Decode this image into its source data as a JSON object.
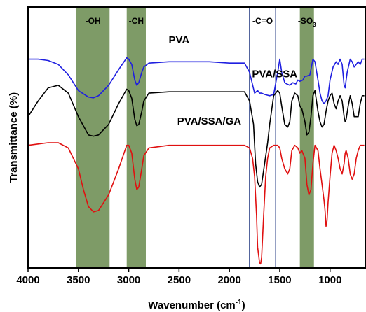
{
  "chart_data": {
    "type": "line",
    "xlabel": "Wavenumber (cm",
    "xlabel_sup": "-1",
    "xlabel_end": ")",
    "ylabel": "Transmittance (%)",
    "xlim": [
      4000,
      650
    ],
    "x_reversed": true,
    "x_ticks": [
      "4000",
      "3500",
      "3000",
      "2500",
      "2000",
      "1500",
      "1000"
    ],
    "x_tick_values": [
      4000,
      3500,
      3000,
      2500,
      2000,
      1500,
      1000
    ],
    "ylim": [
      0,
      100
    ],
    "y_ticks_shown": false,
    "grid": false,
    "bands": [
      {
        "label": "-OH",
        "range": [
          3520,
          3190
        ],
        "style": "filled"
      },
      {
        "label": "-CH",
        "range": [
          3020,
          2830
        ],
        "style": "filled"
      },
      {
        "label": "-C=O",
        "range": [
          1800,
          1540
        ],
        "style": "outlined"
      },
      {
        "label": "-SO",
        "sub": "3",
        "range": [
          1300,
          1160
        ],
        "style": "filled"
      }
    ],
    "band_fill": "#5a7f3c",
    "band_outline": "#3a4f8f",
    "series": [
      {
        "name": "PVA",
        "color": "#1f1fe0",
        "label_x": 2500,
        "label_y": 86,
        "x": [
          4000,
          3900,
          3800,
          3700,
          3600,
          3500,
          3400,
          3350,
          3300,
          3200,
          3100,
          3020,
          3000,
          2970,
          2940,
          2920,
          2900,
          2870,
          2850,
          2800,
          2600,
          2400,
          2200,
          2000,
          1850,
          1800,
          1750,
          1720,
          1700,
          1680,
          1650,
          1600,
          1560,
          1520,
          1500,
          1480,
          1450,
          1430,
          1400,
          1370,
          1340,
          1320,
          1300,
          1270,
          1250,
          1230,
          1200,
          1170,
          1150,
          1120,
          1100,
          1080,
          1060,
          1040,
          1020,
          1000,
          970,
          940,
          920,
          900,
          880,
          860,
          850,
          840,
          830,
          800,
          780,
          760,
          720,
          700,
          680,
          660
        ],
        "y": [
          80,
          80,
          79.5,
          78,
          74,
          68,
          65.5,
          65.2,
          66,
          70,
          76,
          80.5,
          80,
          78,
          72,
          70,
          71,
          75,
          77,
          78.5,
          79,
          79,
          79,
          78.5,
          78.5,
          75,
          67,
          68,
          67,
          67,
          66.5,
          66,
          66.5,
          75,
          80,
          75,
          71,
          70.5,
          70,
          71,
          70.5,
          72,
          71.5,
          72,
          73.5,
          73.5,
          74,
          80,
          79,
          72,
          67,
          64,
          63,
          64,
          66,
          72,
          77,
          79,
          78,
          80,
          78,
          70,
          69,
          72,
          75,
          80,
          79,
          77,
          79,
          78,
          80,
          80
        ]
      },
      {
        "name": "PVA/SSA",
        "color": "#000000",
        "label_x": 1550,
        "label_y": 73,
        "x": [
          4000,
          3900,
          3800,
          3700,
          3600,
          3500,
          3400,
          3350,
          3300,
          3200,
          3100,
          3020,
          3000,
          2970,
          2940,
          2920,
          2900,
          2870,
          2850,
          2800,
          2600,
          2400,
          2200,
          2000,
          1850,
          1800,
          1760,
          1740,
          1720,
          1700,
          1680,
          1650,
          1620,
          1600,
          1560,
          1520,
          1500,
          1480,
          1450,
          1420,
          1400,
          1380,
          1350,
          1320,
          1300,
          1280,
          1250,
          1230,
          1210,
          1190,
          1170,
          1150,
          1120,
          1100,
          1080,
          1060,
          1040,
          1020,
          1000,
          980,
          960,
          940,
          920,
          900,
          880,
          860,
          850,
          840,
          820,
          800,
          780,
          760,
          720,
          700,
          680,
          660
        ],
        "y": [
          58,
          64,
          69,
          70,
          67,
          58,
          51,
          50.5,
          51,
          55,
          63,
          68.5,
          68,
          65,
          57,
          54.5,
          55,
          60,
          64,
          67,
          67.5,
          67.5,
          67.5,
          67.5,
          67.5,
          64,
          55,
          40,
          33,
          31,
          32,
          40,
          48,
          55,
          66,
          68,
          67,
          62,
          55,
          54,
          56,
          64,
          67,
          66,
          62,
          61,
          56,
          51,
          52,
          58,
          66,
          68,
          60,
          56,
          54,
          55,
          60,
          64,
          66,
          67,
          63,
          61,
          64,
          66,
          64,
          58,
          56,
          57,
          62,
          66,
          63,
          58,
          58,
          63,
          66,
          66
        ]
      },
      {
        "name": "PVA/SSA/GA",
        "color": "#e01010",
        "label_x": 2200,
        "label_y": 55,
        "x": [
          4000,
          3900,
          3800,
          3700,
          3600,
          3500,
          3450,
          3400,
          3350,
          3300,
          3200,
          3100,
          3020,
          3000,
          2970,
          2940,
          2920,
          2900,
          2870,
          2850,
          2800,
          2600,
          2400,
          2200,
          2000,
          1850,
          1800,
          1770,
          1750,
          1730,
          1720,
          1700,
          1690,
          1680,
          1660,
          1640,
          1620,
          1600,
          1560,
          1520,
          1500,
          1480,
          1450,
          1420,
          1400,
          1380,
          1350,
          1320,
          1300,
          1280,
          1250,
          1230,
          1210,
          1190,
          1170,
          1150,
          1120,
          1100,
          1080,
          1060,
          1050,
          1040,
          1030,
          1020,
          1000,
          980,
          960,
          940,
          920,
          900,
          880,
          860,
          850,
          840,
          820,
          800,
          780,
          760,
          740,
          720,
          700,
          680,
          660
        ],
        "y": [
          47,
          47.5,
          48,
          48,
          46,
          38,
          30,
          23.5,
          21.5,
          22,
          28,
          38,
          47,
          47,
          44,
          34,
          30,
          31,
          38,
          43,
          46,
          47,
          47,
          47,
          47,
          47,
          46,
          42,
          35,
          20,
          8,
          2,
          1.5,
          4,
          20,
          35,
          42,
          46,
          47,
          47,
          46,
          42,
          38,
          36,
          38,
          45,
          47,
          46,
          44,
          45,
          42,
          32,
          28,
          30,
          40,
          47,
          45,
          38,
          32,
          26,
          22,
          16,
          18,
          25,
          35,
          44,
          47,
          45,
          42,
          38,
          36,
          40,
          44,
          45,
          42,
          36,
          34,
          36,
          42,
          45,
          47,
          47,
          47
        ]
      }
    ]
  }
}
